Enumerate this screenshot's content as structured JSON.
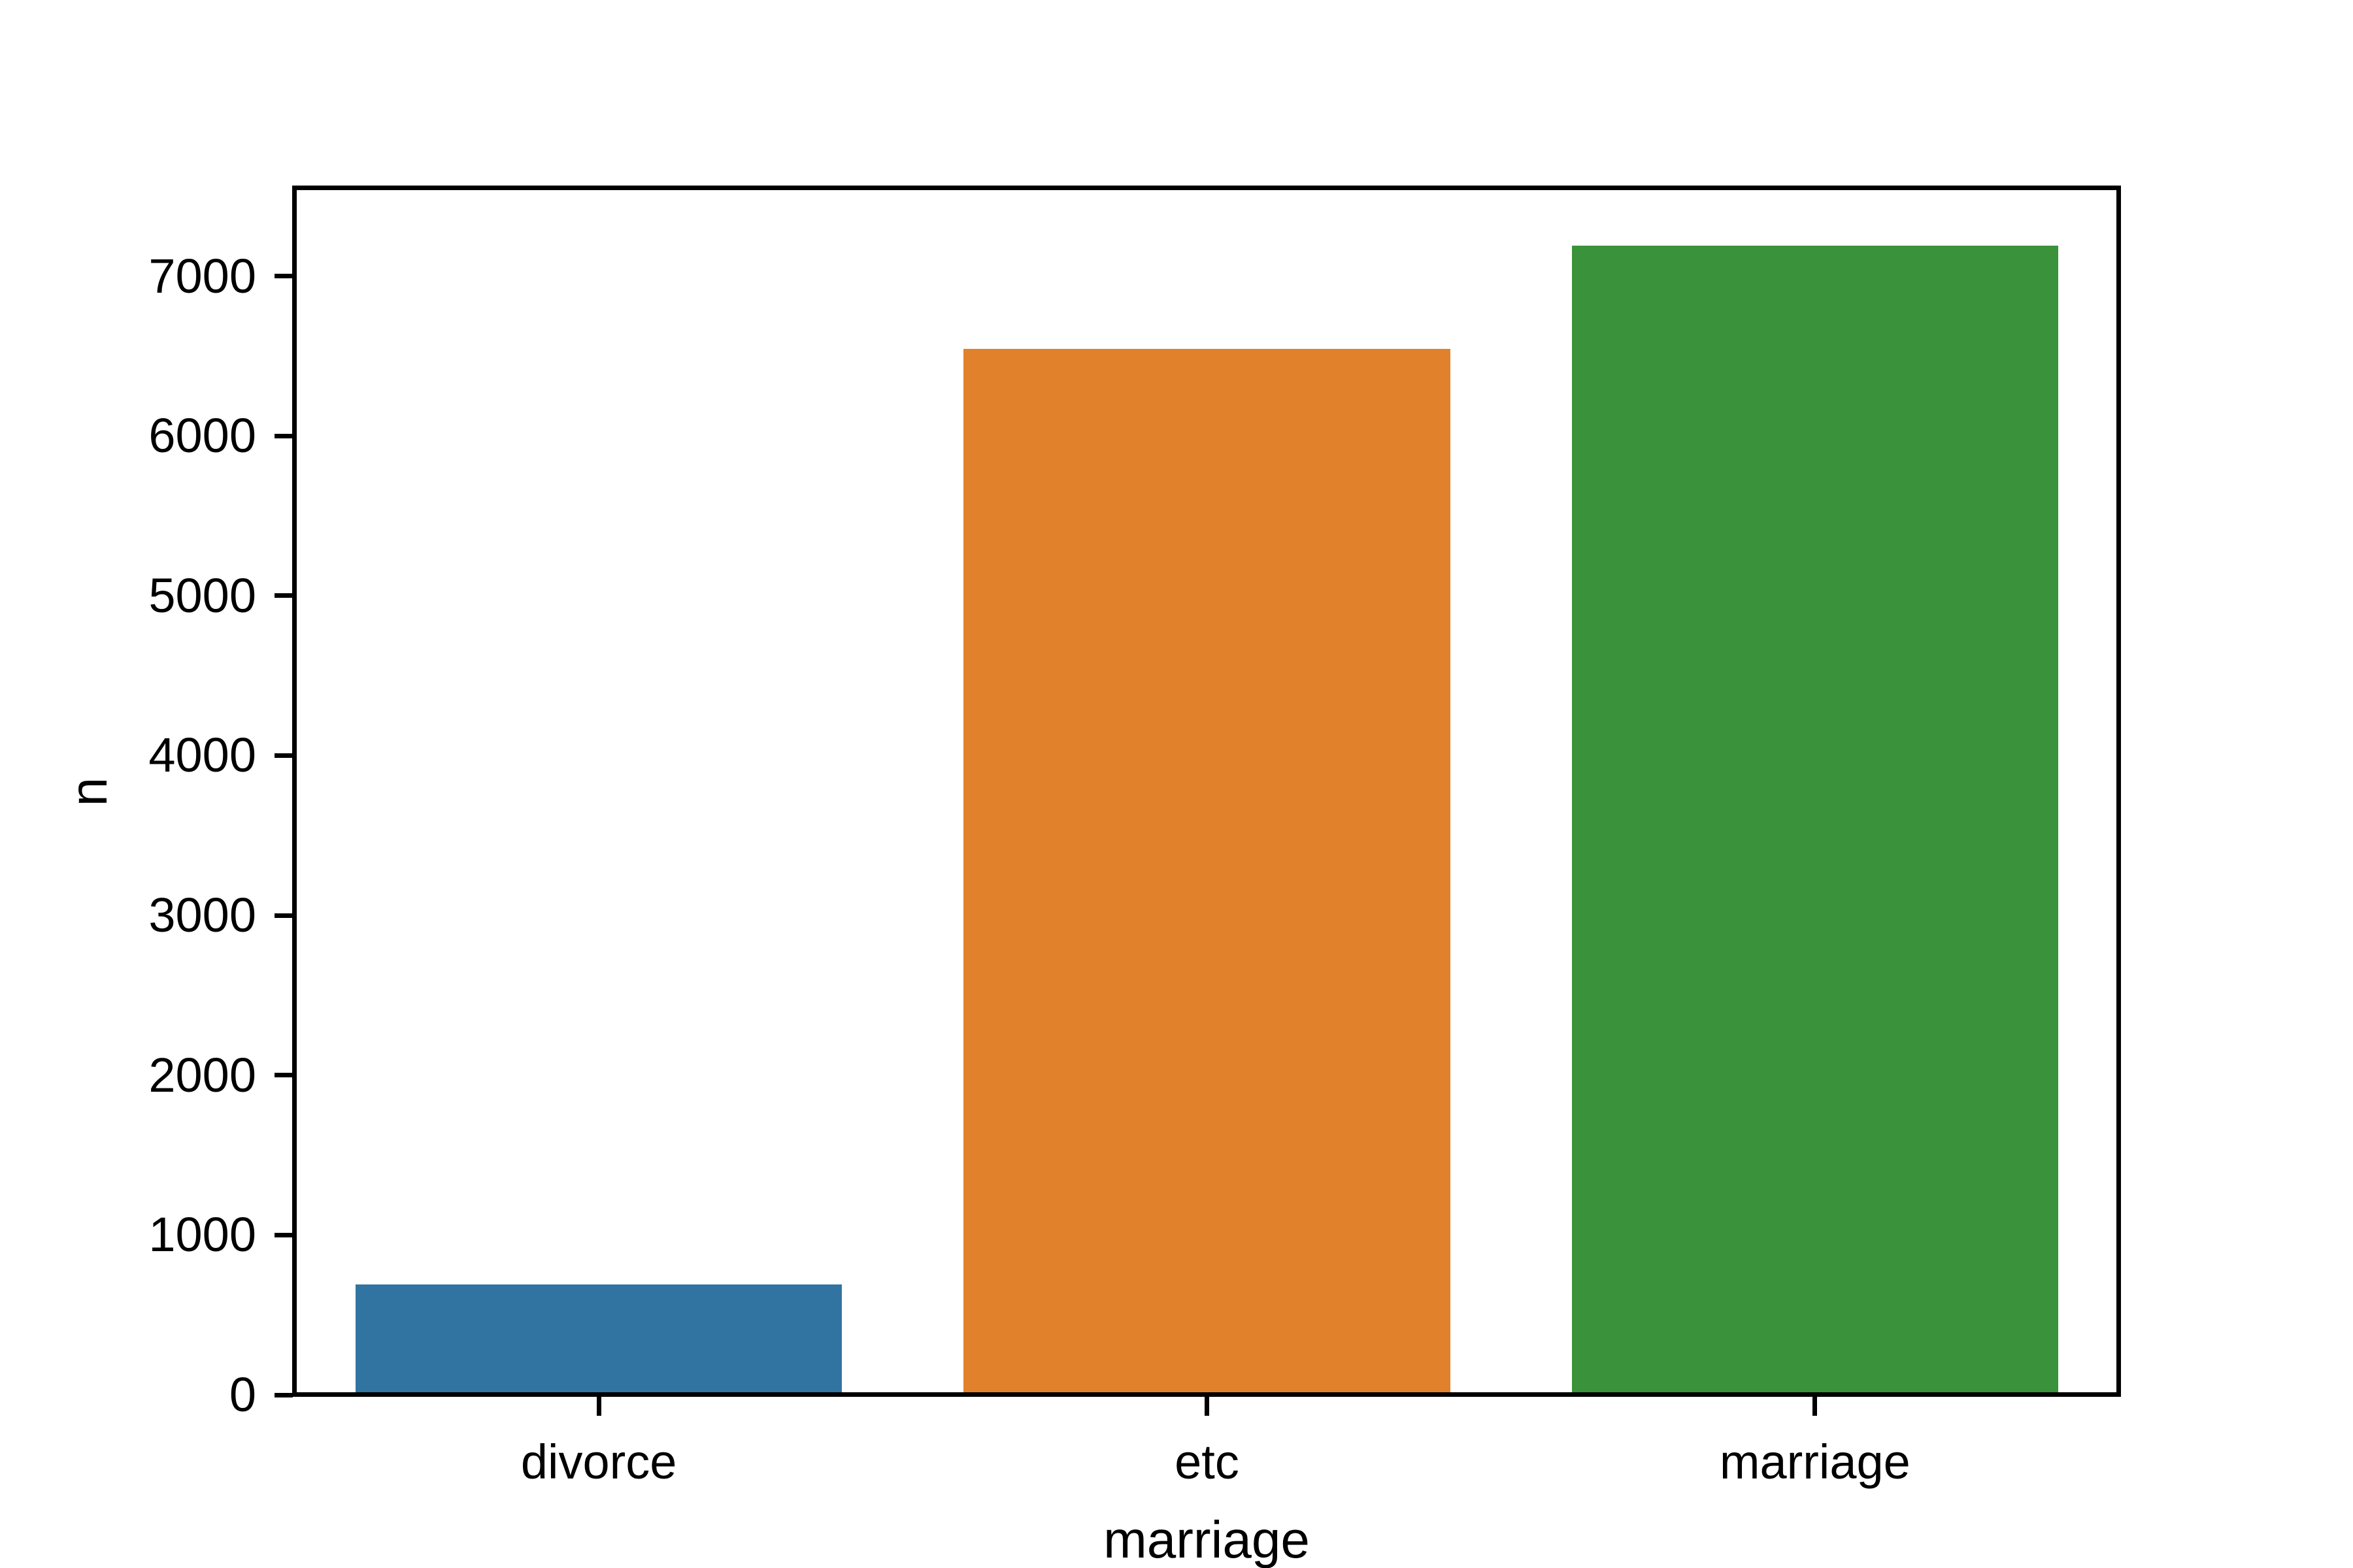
{
  "figure": {
    "background": "#ffffff",
    "axis_color": "#000000",
    "text_color": "#000000"
  },
  "chart_data": {
    "type": "bar",
    "title": "",
    "xlabel": "marriage",
    "ylabel": "n",
    "categories": [
      "divorce",
      "etc",
      "marriage"
    ],
    "values": [
      690,
      6545,
      7190
    ],
    "bar_colors": [
      "#3274a1",
      "#e1812c",
      "#3a923a"
    ],
    "yticks": [
      0,
      1000,
      2000,
      3000,
      4000,
      5000,
      6000,
      7000
    ],
    "ylim": [
      0,
      7550
    ],
    "grid": false,
    "legend_position": "none",
    "bar_width_fraction": 0.8
  }
}
